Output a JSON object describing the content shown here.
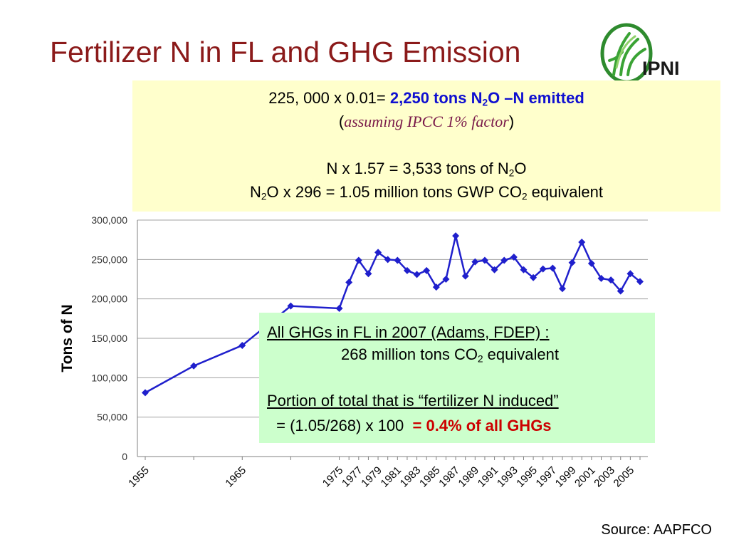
{
  "slide": {
    "title": "Fertilizer N in FL and GHG Emission",
    "logo_text": "IPNI",
    "source": "Source: AAPFCO"
  },
  "box1": {
    "line1_prefix": "225, 000 x 0.01= ",
    "line1_bold_a": "2,250 tons N",
    "line1_bold_sub": "2",
    "line1_bold_b": "O –N emitted",
    "line2_open": "(",
    "line2_italic": "assuming IPCC 1% factor",
    "line2_close": ")",
    "line3_a": "N x 1.57 = 3,533 tons of N",
    "line3_sub": "2",
    "line3_b": "O",
    "line4_a": "N",
    "line4_sub1": "2",
    "line4_b": "O x 296 = 1.05 million tons GWP CO",
    "line4_sub2": "2",
    "line4_c": " equivalent"
  },
  "box2": {
    "line1": "All GHGs in FL in 2007 (Adams, FDEP) :",
    "line2_a": "268 million tons CO",
    "line2_sub": "2",
    "line2_b": " equivalent",
    "line3": "Portion of total that is “fertilizer N induced”",
    "line4_a": " = (1.05/268) x 100  ",
    "line4_red": "= 0.4% of all GHGs"
  },
  "colors": {
    "title": "#8b1a1a",
    "series": "#1f1fcc",
    "box1_bg": "#ffffcc",
    "box2_bg": "#ccffcc",
    "highlight_blue": "#1010d0",
    "highlight_red": "#cc0000"
  },
  "chart_data": {
    "type": "line",
    "ylabel": "Tons of N",
    "xlabel": "",
    "ylim": [
      0,
      300000
    ],
    "yticks": [
      0,
      50000,
      100000,
      150000,
      200000,
      250000,
      300000
    ],
    "ytick_labels": [
      "0",
      "50,000",
      "100,000",
      "150,000",
      "200,000",
      "250,000",
      "300,000"
    ],
    "xtick_labels": [
      "1955",
      "1965",
      "1975",
      "1977",
      "1979",
      "1981",
      "1983",
      "1985",
      "1987",
      "1989",
      "1991",
      "1993",
      "1995",
      "1997",
      "1999",
      "2001",
      "2003",
      "2005"
    ],
    "grid": "horizontal",
    "legend": "none",
    "x": [
      1955,
      1960,
      1965,
      1970,
      1975,
      1976,
      1977,
      1978,
      1979,
      1980,
      1981,
      1982,
      1983,
      1984,
      1985,
      1986,
      1987,
      1988,
      1989,
      1990,
      1991,
      1992,
      1993,
      1994,
      1995,
      1996,
      1997,
      1998,
      1999,
      2000,
      2001,
      2002,
      2003,
      2004,
      2005,
      2006
    ],
    "series": [
      {
        "values": [
          81000,
          115000,
          141000,
          191000,
          188000,
          221000,
          249000,
          232000,
          259000,
          250000,
          249000,
          236000,
          231000,
          236000,
          215000,
          225000,
          280000,
          229000,
          247000,
          249000,
          237000,
          249000,
          253000,
          237000,
          227000,
          238000,
          239000,
          213000,
          246000,
          272000,
          245000,
          226000,
          224000,
          210000,
          232000,
          222000
        ]
      }
    ]
  }
}
